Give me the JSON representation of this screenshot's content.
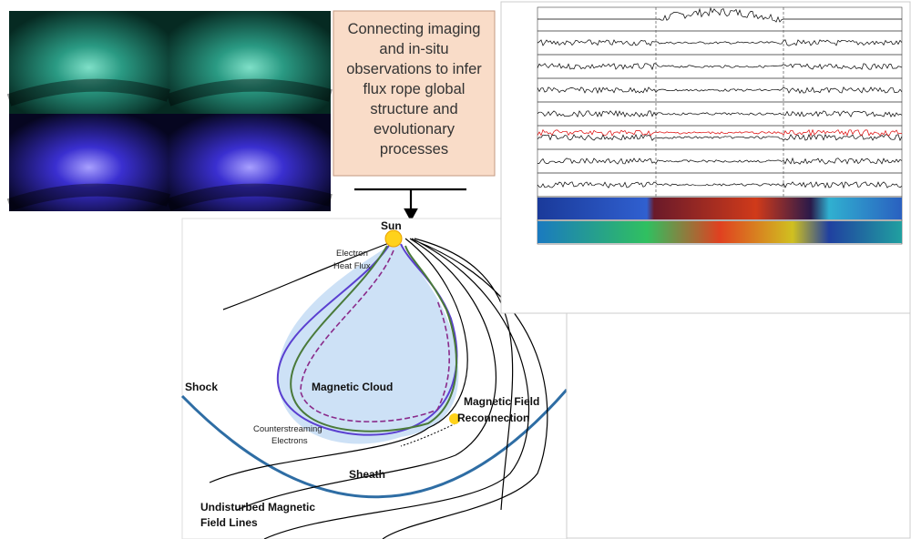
{
  "caption_box": {
    "lines": [
      "Connecting imaging",
      "and in-situ",
      "observations to infer",
      "flux rope global",
      "structure and",
      "evolutionary",
      "processes"
    ]
  },
  "diagram": {
    "sun": "Sun",
    "heat_flux": [
      "Electron",
      "Heat Flux"
    ],
    "shock": "Shock",
    "cloud": "Magnetic Cloud",
    "reconnection": [
      "Magnetic Field",
      "Reconnection"
    ],
    "counterstreaming": [
      "Counterstreaming",
      "Electrons"
    ],
    "sheath": "Sheath",
    "undisturbed": [
      "Undisturbed Magnetic",
      "Field Lines"
    ]
  }
}
